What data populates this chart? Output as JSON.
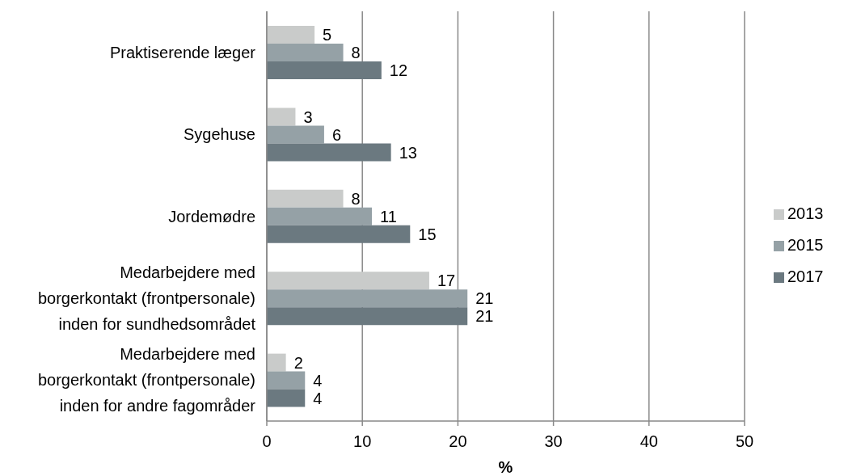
{
  "chart_data": {
    "type": "bar",
    "orientation": "horizontal",
    "categories": [
      "Praktiserende læger",
      "Sygehuse",
      "Jordemødre",
      "Medarbejdere med\nborgerkontakt (frontpersonale)\ninden for sundhedsområdet",
      "Medarbejdere med\nborgerkontakt (frontpersonale)\ninden for andre fagområder"
    ],
    "series": [
      {
        "name": "2013",
        "color": "#c9cbca",
        "values": [
          5,
          3,
          8,
          17,
          2
        ]
      },
      {
        "name": "2015",
        "color": "#95a1a6",
        "values": [
          8,
          6,
          11,
          21,
          4
        ]
      },
      {
        "name": "2017",
        "color": "#6b7980",
        "values": [
          12,
          13,
          15,
          21,
          4
        ]
      }
    ],
    "xlabel": "%",
    "xlim": [
      0,
      50
    ],
    "xticks": [
      0,
      10,
      20,
      30,
      40,
      50
    ],
    "grid": "x",
    "legend": "right",
    "data_labels": true
  }
}
